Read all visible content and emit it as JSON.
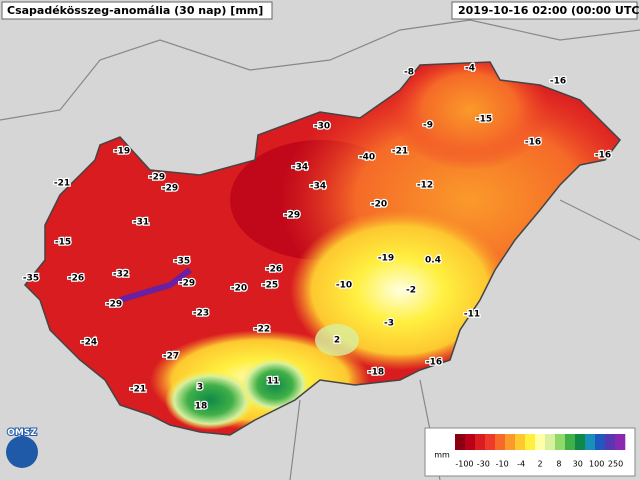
{
  "header": {
    "title": "Csapadékösszeg-anomália (30 nap) [mm]",
    "timestamp": "2019-10-16 02:00 (00:00 UTC)"
  },
  "logo": "OMSZ",
  "stations": [
    -19,
    -21,
    -29,
    -29,
    -15,
    -31,
    -35,
    -26,
    -32,
    -35,
    -29,
    -29,
    -24,
    -23,
    -20,
    -25,
    -26,
    -22,
    -27,
    -21,
    3,
    18,
    11,
    -30,
    -34,
    -34,
    -29,
    -40,
    -21,
    -20,
    -19,
    -10,
    2,
    -3,
    -2,
    0.4,
    -12,
    -9,
    -8,
    -4,
    -15,
    -16,
    -16,
    -16,
    -11,
    -16,
    -18
  ],
  "legend": {
    "unit": "mm",
    "ticks": [
      -100,
      -30,
      -10,
      -4,
      2,
      8,
      30,
      100,
      250
    ],
    "colors": [
      "#8a0010",
      "#b80018",
      "#d81c20",
      "#ee3a28",
      "#f56a28",
      "#fa9a2a",
      "#fdc830",
      "#fff040",
      "#ffffa8",
      "#d8f0a0",
      "#90d868",
      "#40b048",
      "#108848",
      "#1890b8",
      "#2058c0",
      "#5838b0",
      "#8a28b0"
    ]
  }
}
